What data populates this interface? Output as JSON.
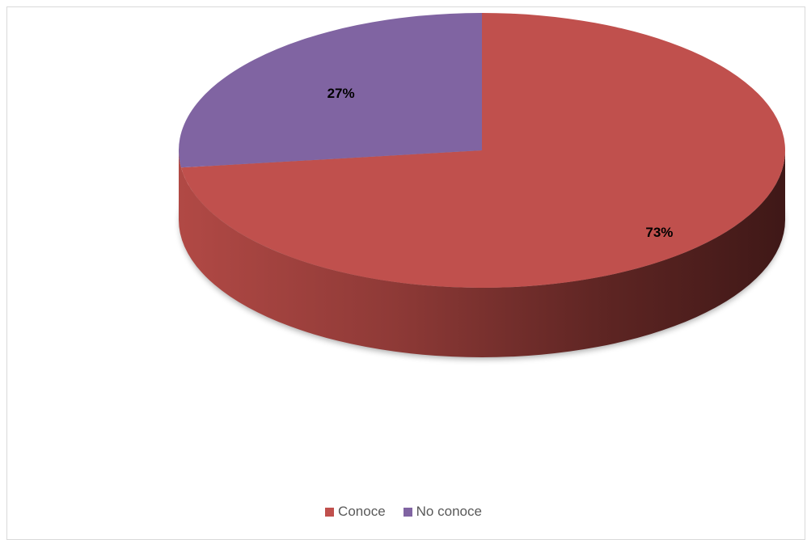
{
  "chart_data": {
    "type": "pie",
    "three_d": true,
    "title": "",
    "categories": [
      "Conoce",
      "No conoce"
    ],
    "values": [
      73,
      27
    ],
    "data_labels": [
      "73%",
      "27%"
    ],
    "colors": [
      "#C0504D",
      "#8064A2"
    ],
    "side_colors": [
      "#8E3B38",
      "#5D497A"
    ],
    "legend_position": "bottom"
  }
}
